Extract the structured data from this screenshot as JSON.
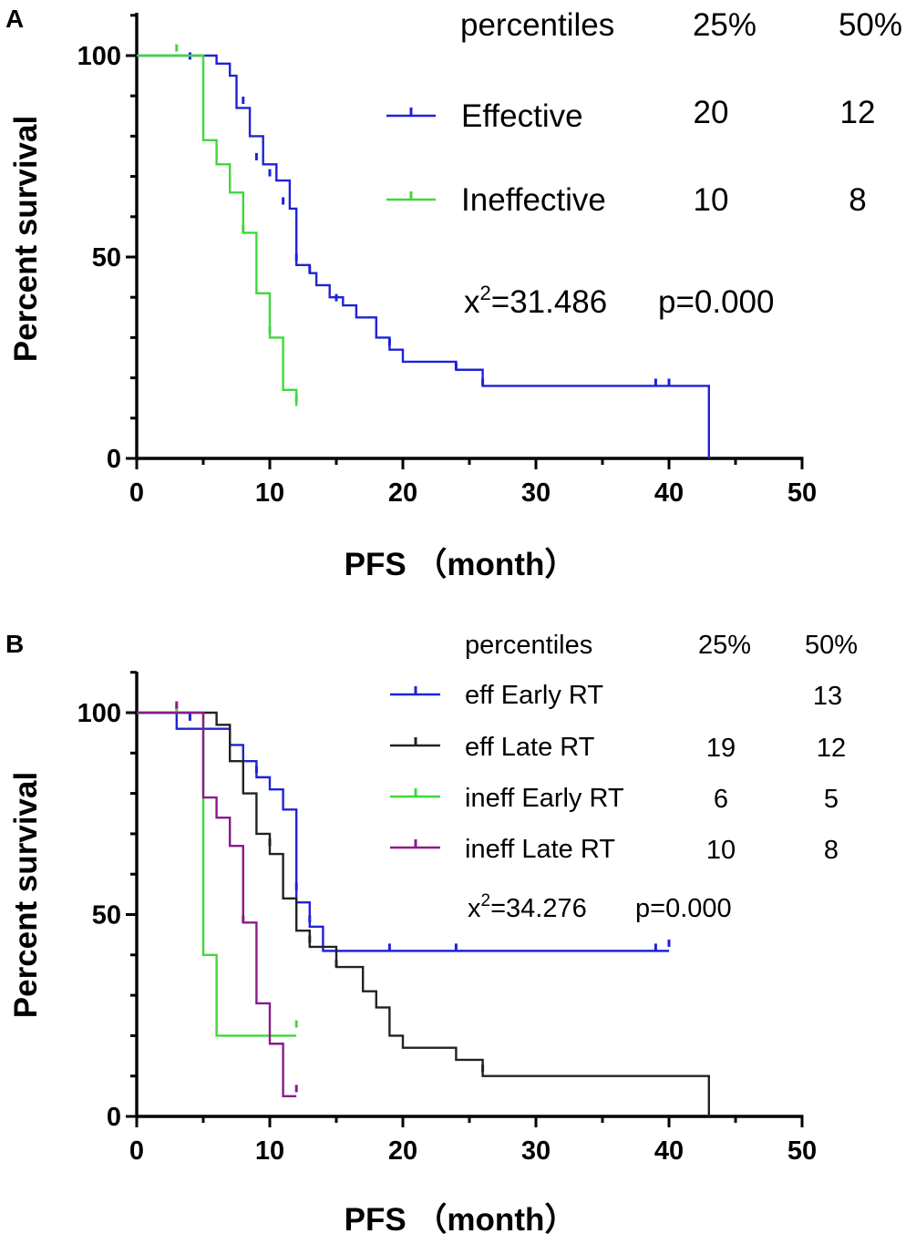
{
  "chart_data": [
    {
      "panel": "A",
      "type": "line",
      "subtype": "kaplan-meier",
      "title": "",
      "xlabel": "PFS （month）",
      "ylabel": "Percent survival",
      "xlim": [
        0,
        50
      ],
      "ylim": [
        0,
        110
      ],
      "xticks": [
        "0",
        "10",
        "20",
        "30",
        "40",
        "50"
      ],
      "yticks": [
        "0",
        "50",
        "100"
      ],
      "xtick_values": [
        0,
        10,
        20,
        30,
        40,
        50
      ],
      "ytick_values": [
        0,
        50,
        100
      ],
      "table": {
        "header": [
          "percentiles",
          "25%",
          "50%"
        ],
        "rows": [
          {
            "label": "Effective",
            "p25": "20",
            "p50": "12"
          },
          {
            "label": "Ineffective",
            "p25": "10",
            "p50": "8"
          }
        ]
      },
      "stat": {
        "chi_prefix": "x",
        "chi_sup": "2",
        "chi_value": "=31.486",
        "p": "p=0.000"
      },
      "series": [
        {
          "name": "Effective",
          "color": "#1f22d6",
          "steps": [
            [
              0,
              100
            ],
            [
              6,
              98
            ],
            [
              7,
              95
            ],
            [
              7.5,
              87
            ],
            [
              8.5,
              80
            ],
            [
              9.5,
              73
            ],
            [
              10.5,
              69
            ],
            [
              11.5,
              62
            ],
            [
              12,
              48
            ],
            [
              13,
              46
            ],
            [
              13.5,
              43
            ],
            [
              14.5,
              40
            ],
            [
              15.5,
              38
            ],
            [
              16.5,
              35
            ],
            [
              18,
              30
            ],
            [
              19,
              27
            ],
            [
              20,
              24
            ],
            [
              24,
              22
            ],
            [
              26,
              18
            ],
            [
              43,
              0
            ]
          ],
          "end_x": 43,
          "censored": [
            [
              4,
              99
            ],
            [
              8,
              88
            ],
            [
              9,
              74
            ],
            [
              10,
              70
            ],
            [
              11,
              63
            ],
            [
              12,
              49
            ],
            [
              13,
              46
            ],
            [
              15,
              39
            ],
            [
              19,
              28
            ],
            [
              24,
              22
            ],
            [
              26,
              18
            ],
            [
              39,
              18
            ],
            [
              40,
              18
            ]
          ]
        },
        {
          "name": "Ineffective",
          "color": "#3fd83a",
          "steps": [
            [
              0,
              100
            ],
            [
              5,
              79
            ],
            [
              6,
              73
            ],
            [
              7,
              66
            ],
            [
              8,
              56
            ],
            [
              9,
              41
            ],
            [
              10,
              30
            ],
            [
              11,
              17
            ],
            [
              12,
              13
            ]
          ],
          "end_x": 12,
          "censored": [
            [
              3,
              101
            ],
            [
              8,
              56
            ],
            [
              10,
              31
            ],
            [
              12,
              14
            ]
          ]
        }
      ]
    },
    {
      "panel": "B",
      "type": "line",
      "subtype": "kaplan-meier",
      "title": "",
      "xlabel": "PFS （month）",
      "ylabel": "Percent survival",
      "xlim": [
        0,
        50
      ],
      "ylim": [
        0,
        110
      ],
      "xticks": [
        "0",
        "10",
        "20",
        "30",
        "40",
        "50"
      ],
      "yticks": [
        "0",
        "50",
        "100"
      ],
      "xtick_values": [
        0,
        10,
        20,
        30,
        40,
        50
      ],
      "ytick_values": [
        0,
        50,
        100
      ],
      "table": {
        "header": [
          "percentiles",
          "25%",
          "50%"
        ],
        "rows": [
          {
            "label": "eff Early RT",
            "p25": "",
            "p50": "13"
          },
          {
            "label": "eff Late RT",
            "p25": "19",
            "p50": "12"
          },
          {
            "label": "ineff Early RT",
            "p25": "6",
            "p50": "5"
          },
          {
            "label": "ineff Late RT",
            "p25": "10",
            "p50": "8"
          }
        ]
      },
      "stat": {
        "chi_prefix": "x",
        "chi_sup": "2",
        "chi_value": "=34.276",
        "p": "p=0.000"
      },
      "series": [
        {
          "name": "eff Early RT",
          "color": "#1f22d6",
          "steps": [
            [
              0,
              100
            ],
            [
              3,
              96
            ],
            [
              7,
              92
            ],
            [
              8,
              88
            ],
            [
              9,
              84
            ],
            [
              10,
              81
            ],
            [
              11,
              76
            ],
            [
              12,
              53
            ],
            [
              13,
              47
            ],
            [
              14,
              41
            ]
          ],
          "end_x": 40,
          "censored": [
            [
              4,
              98
            ],
            [
              9,
              85
            ],
            [
              12,
              56
            ],
            [
              13,
              48
            ],
            [
              19,
              41
            ],
            [
              24,
              41
            ],
            [
              39,
              41
            ],
            [
              40,
              42
            ]
          ]
        },
        {
          "name": "eff Late RT",
          "color": "#222222",
          "steps": [
            [
              0,
              100
            ],
            [
              6,
              97
            ],
            [
              7,
              88
            ],
            [
              8,
              80
            ],
            [
              9,
              70
            ],
            [
              10,
              65
            ],
            [
              11,
              54
            ],
            [
              12,
              46
            ],
            [
              13,
              42
            ],
            [
              15,
              37
            ],
            [
              17,
              31
            ],
            [
              18,
              27
            ],
            [
              19,
              20
            ],
            [
              20,
              17
            ],
            [
              24,
              14
            ],
            [
              26,
              10
            ],
            [
              43,
              0
            ]
          ],
          "end_x": 43,
          "censored": [
            [
              10,
              67
            ],
            [
              13,
              43
            ],
            [
              15,
              37
            ],
            [
              26,
              11
            ]
          ]
        },
        {
          "name": "ineff Early RT",
          "color": "#3fd83a",
          "steps": [
            [
              0,
              100
            ],
            [
              5,
              40
            ],
            [
              6,
              20
            ]
          ],
          "end_x": 12,
          "censored": [
            [
              3,
              100
            ],
            [
              12,
              22
            ]
          ]
        },
        {
          "name": "ineff Late RT",
          "color": "#8b1a8c",
          "steps": [
            [
              0,
              100
            ],
            [
              5,
              79
            ],
            [
              6,
              74
            ],
            [
              7,
              67
            ],
            [
              8,
              48
            ],
            [
              9,
              28
            ],
            [
              10,
              18
            ],
            [
              11,
              5
            ]
          ],
          "end_x": 12,
          "censored": [
            [
              3,
              101
            ],
            [
              8,
              48
            ],
            [
              12,
              6
            ]
          ]
        }
      ]
    }
  ]
}
